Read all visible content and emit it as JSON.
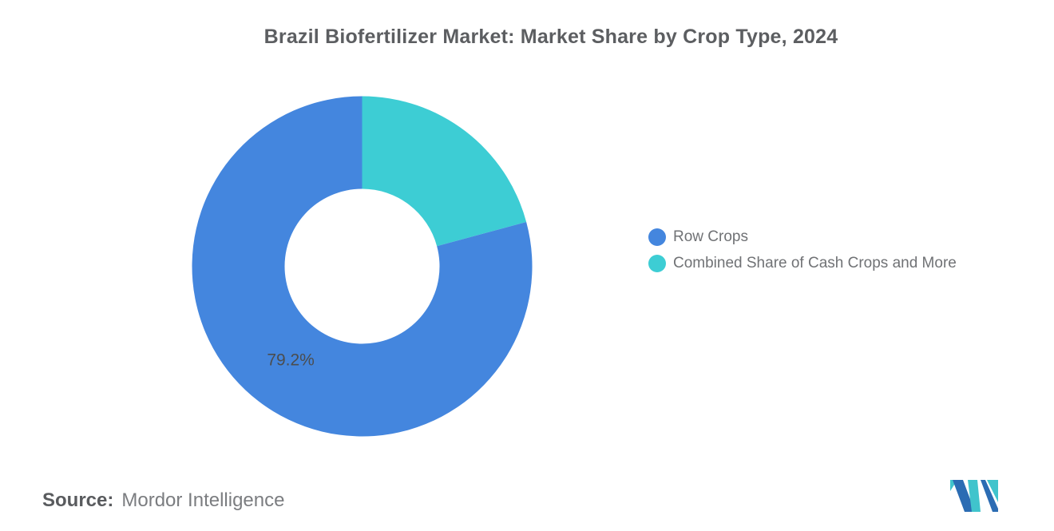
{
  "chart_data": {
    "type": "pie",
    "subtype": "donut",
    "title": "Brazil Biofertilizer Market: Market Share by Crop Type, 2024",
    "unit": "%",
    "categories": [
      "Row Crops",
      "Combined Share of Cash Crops and More"
    ],
    "values": [
      79.2,
      20.8
    ],
    "slices": [
      {
        "label": "Row Crops",
        "value": 79.2,
        "color": "#4486DE",
        "data_label": "79.2%"
      },
      {
        "label": "Combined Share of Cash Crops and More",
        "value": 20.8,
        "color": "#3DCDD4",
        "data_label": ""
      }
    ],
    "start_angle": "top",
    "direction": "counterclockwise",
    "legend_position": "right",
    "grid": false,
    "background": "#ffffff"
  },
  "footer": {
    "source_label": "Source:",
    "source_value": "Mordor Intelligence"
  },
  "logo": {
    "name": "mordor-intelligence-logo",
    "colors": {
      "blue": "#2B6CB3",
      "teal": "#40C4CC"
    }
  }
}
